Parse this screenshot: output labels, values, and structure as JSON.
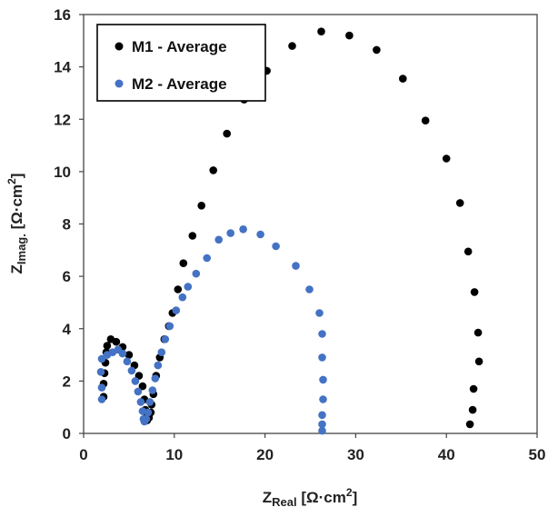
{
  "chart_data": {
    "type": "scatter",
    "title": "",
    "xlabel": {
      "main": "Z",
      "sub": "Real",
      "units": " [Ω·cm",
      "sup": "2",
      "close": "]"
    },
    "ylabel": {
      "main": "Z",
      "sub": "Imag.",
      "units": " [Ω·cm",
      "sup": "2",
      "close": "]"
    },
    "xlim": [
      0,
      50
    ],
    "ylim": [
      0,
      16
    ],
    "xticks": [
      "0",
      "10",
      "20",
      "30",
      "40",
      "50"
    ],
    "yticks": [
      "0",
      "2",
      "4",
      "6",
      "8",
      "10",
      "12",
      "14",
      "16"
    ],
    "legend_position": "top-left",
    "series": [
      {
        "name": "M1 - Average",
        "color": "#000000",
        "points": [
          [
            2.2,
            1.4
          ],
          [
            2.2,
            1.9
          ],
          [
            2.3,
            2.3
          ],
          [
            2.4,
            2.7
          ],
          [
            2.5,
            3.1
          ],
          [
            2.6,
            3.35
          ],
          [
            3.0,
            3.6
          ],
          [
            3.6,
            3.5
          ],
          [
            4.3,
            3.3
          ],
          [
            5.0,
            3.0
          ],
          [
            5.6,
            2.6
          ],
          [
            6.1,
            2.2
          ],
          [
            6.5,
            1.8
          ],
          [
            6.7,
            1.3
          ],
          [
            6.8,
            0.9
          ],
          [
            6.9,
            0.6
          ],
          [
            7.0,
            0.5
          ],
          [
            7.2,
            0.6
          ],
          [
            7.4,
            0.8
          ],
          [
            7.5,
            1.1
          ],
          [
            7.7,
            1.5
          ],
          [
            8.0,
            2.2
          ],
          [
            8.4,
            2.9
          ],
          [
            8.9,
            3.6
          ],
          [
            9.4,
            4.1
          ],
          [
            9.8,
            4.6
          ],
          [
            10.4,
            5.5
          ],
          [
            11.0,
            6.5
          ],
          [
            12.0,
            7.55
          ],
          [
            13.0,
            8.7
          ],
          [
            14.3,
            10.05
          ],
          [
            15.8,
            11.45
          ],
          [
            17.7,
            12.75
          ],
          [
            20.2,
            13.85
          ],
          [
            23.0,
            14.8
          ],
          [
            26.2,
            15.35
          ],
          [
            29.3,
            15.2
          ],
          [
            32.3,
            14.65
          ],
          [
            35.2,
            13.55
          ],
          [
            37.7,
            11.95
          ],
          [
            40.0,
            10.5
          ],
          [
            41.5,
            8.8
          ],
          [
            42.4,
            6.95
          ],
          [
            43.1,
            5.4
          ],
          [
            43.5,
            3.85
          ],
          [
            43.6,
            2.75
          ],
          [
            43.0,
            1.7
          ],
          [
            42.9,
            0.9
          ],
          [
            42.6,
            0.35
          ]
        ]
      },
      {
        "name": "M2 - Average",
        "color": "#4472c4",
        "points": [
          [
            2.0,
            1.3
          ],
          [
            2.0,
            1.75
          ],
          [
            1.9,
            2.35
          ],
          [
            2.0,
            2.85
          ],
          [
            2.6,
            3.0
          ],
          [
            3.2,
            3.1
          ],
          [
            3.8,
            3.2
          ],
          [
            4.3,
            3.05
          ],
          [
            4.8,
            2.75
          ],
          [
            5.3,
            2.4
          ],
          [
            5.7,
            2.0
          ],
          [
            6.0,
            1.6
          ],
          [
            6.3,
            1.2
          ],
          [
            6.5,
            0.85
          ],
          [
            6.6,
            0.55
          ],
          [
            6.7,
            0.45
          ],
          [
            6.9,
            0.55
          ],
          [
            7.1,
            0.8
          ],
          [
            7.3,
            1.2
          ],
          [
            7.6,
            1.65
          ],
          [
            7.9,
            2.1
          ],
          [
            8.2,
            2.6
          ],
          [
            8.6,
            3.1
          ],
          [
            9.0,
            3.6
          ],
          [
            9.5,
            4.1
          ],
          [
            10.2,
            4.7
          ],
          [
            10.9,
            5.2
          ],
          [
            11.5,
            5.6
          ],
          [
            12.4,
            6.1
          ],
          [
            13.6,
            6.7
          ],
          [
            14.9,
            7.4
          ],
          [
            16.2,
            7.65
          ],
          [
            17.6,
            7.8
          ],
          [
            19.5,
            7.6
          ],
          [
            21.2,
            7.15
          ],
          [
            23.4,
            6.4
          ],
          [
            24.9,
            5.5
          ],
          [
            26.0,
            4.6
          ],
          [
            26.3,
            3.8
          ],
          [
            26.3,
            2.9
          ],
          [
            26.4,
            2.05
          ],
          [
            26.4,
            1.3
          ],
          [
            26.3,
            0.7
          ],
          [
            26.3,
            0.35
          ],
          [
            26.3,
            0.1
          ]
        ]
      }
    ]
  }
}
